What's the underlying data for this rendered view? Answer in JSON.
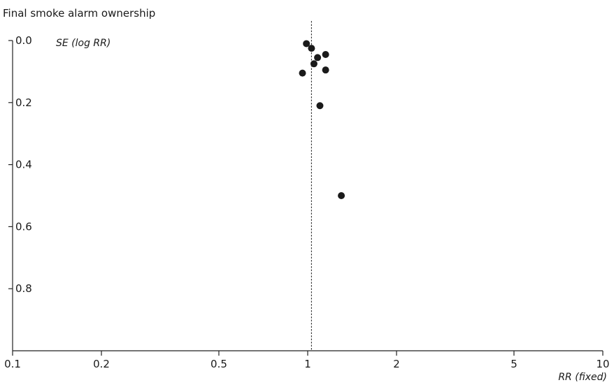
{
  "chart_data": {
    "type": "scatter",
    "title": "Final smoke alarm ownership",
    "xlabel": "RR (fixed)",
    "ylabel": "SE (log RR)",
    "x_scale": "log",
    "xlim": [
      0.1,
      10
    ],
    "ylim": [
      0.0,
      1.0
    ],
    "y_inverted": true,
    "x_ticks": [
      0.1,
      0.2,
      0.5,
      1,
      2,
      5,
      10
    ],
    "x_tick_labels": [
      "0.1",
      "0.2",
      "0.5",
      "1",
      "2",
      "5",
      "10"
    ],
    "y_ticks": [
      0.0,
      0.2,
      0.4,
      0.6,
      0.8
    ],
    "y_tick_labels": [
      "0.0",
      "0.2",
      "0.4",
      "0.6",
      "0.8"
    ],
    "reference_line_x": 1.03,
    "grid": false,
    "points": [
      {
        "x": 0.99,
        "y": 0.01
      },
      {
        "x": 1.03,
        "y": 0.025
      },
      {
        "x": 1.15,
        "y": 0.045
      },
      {
        "x": 1.08,
        "y": 0.055
      },
      {
        "x": 1.05,
        "y": 0.075
      },
      {
        "x": 1.15,
        "y": 0.095
      },
      {
        "x": 0.96,
        "y": 0.105
      },
      {
        "x": 1.1,
        "y": 0.21
      },
      {
        "x": 1.3,
        "y": 0.5
      }
    ]
  },
  "colors": {
    "points": "#1a1a1a",
    "axes": "#222222"
  }
}
